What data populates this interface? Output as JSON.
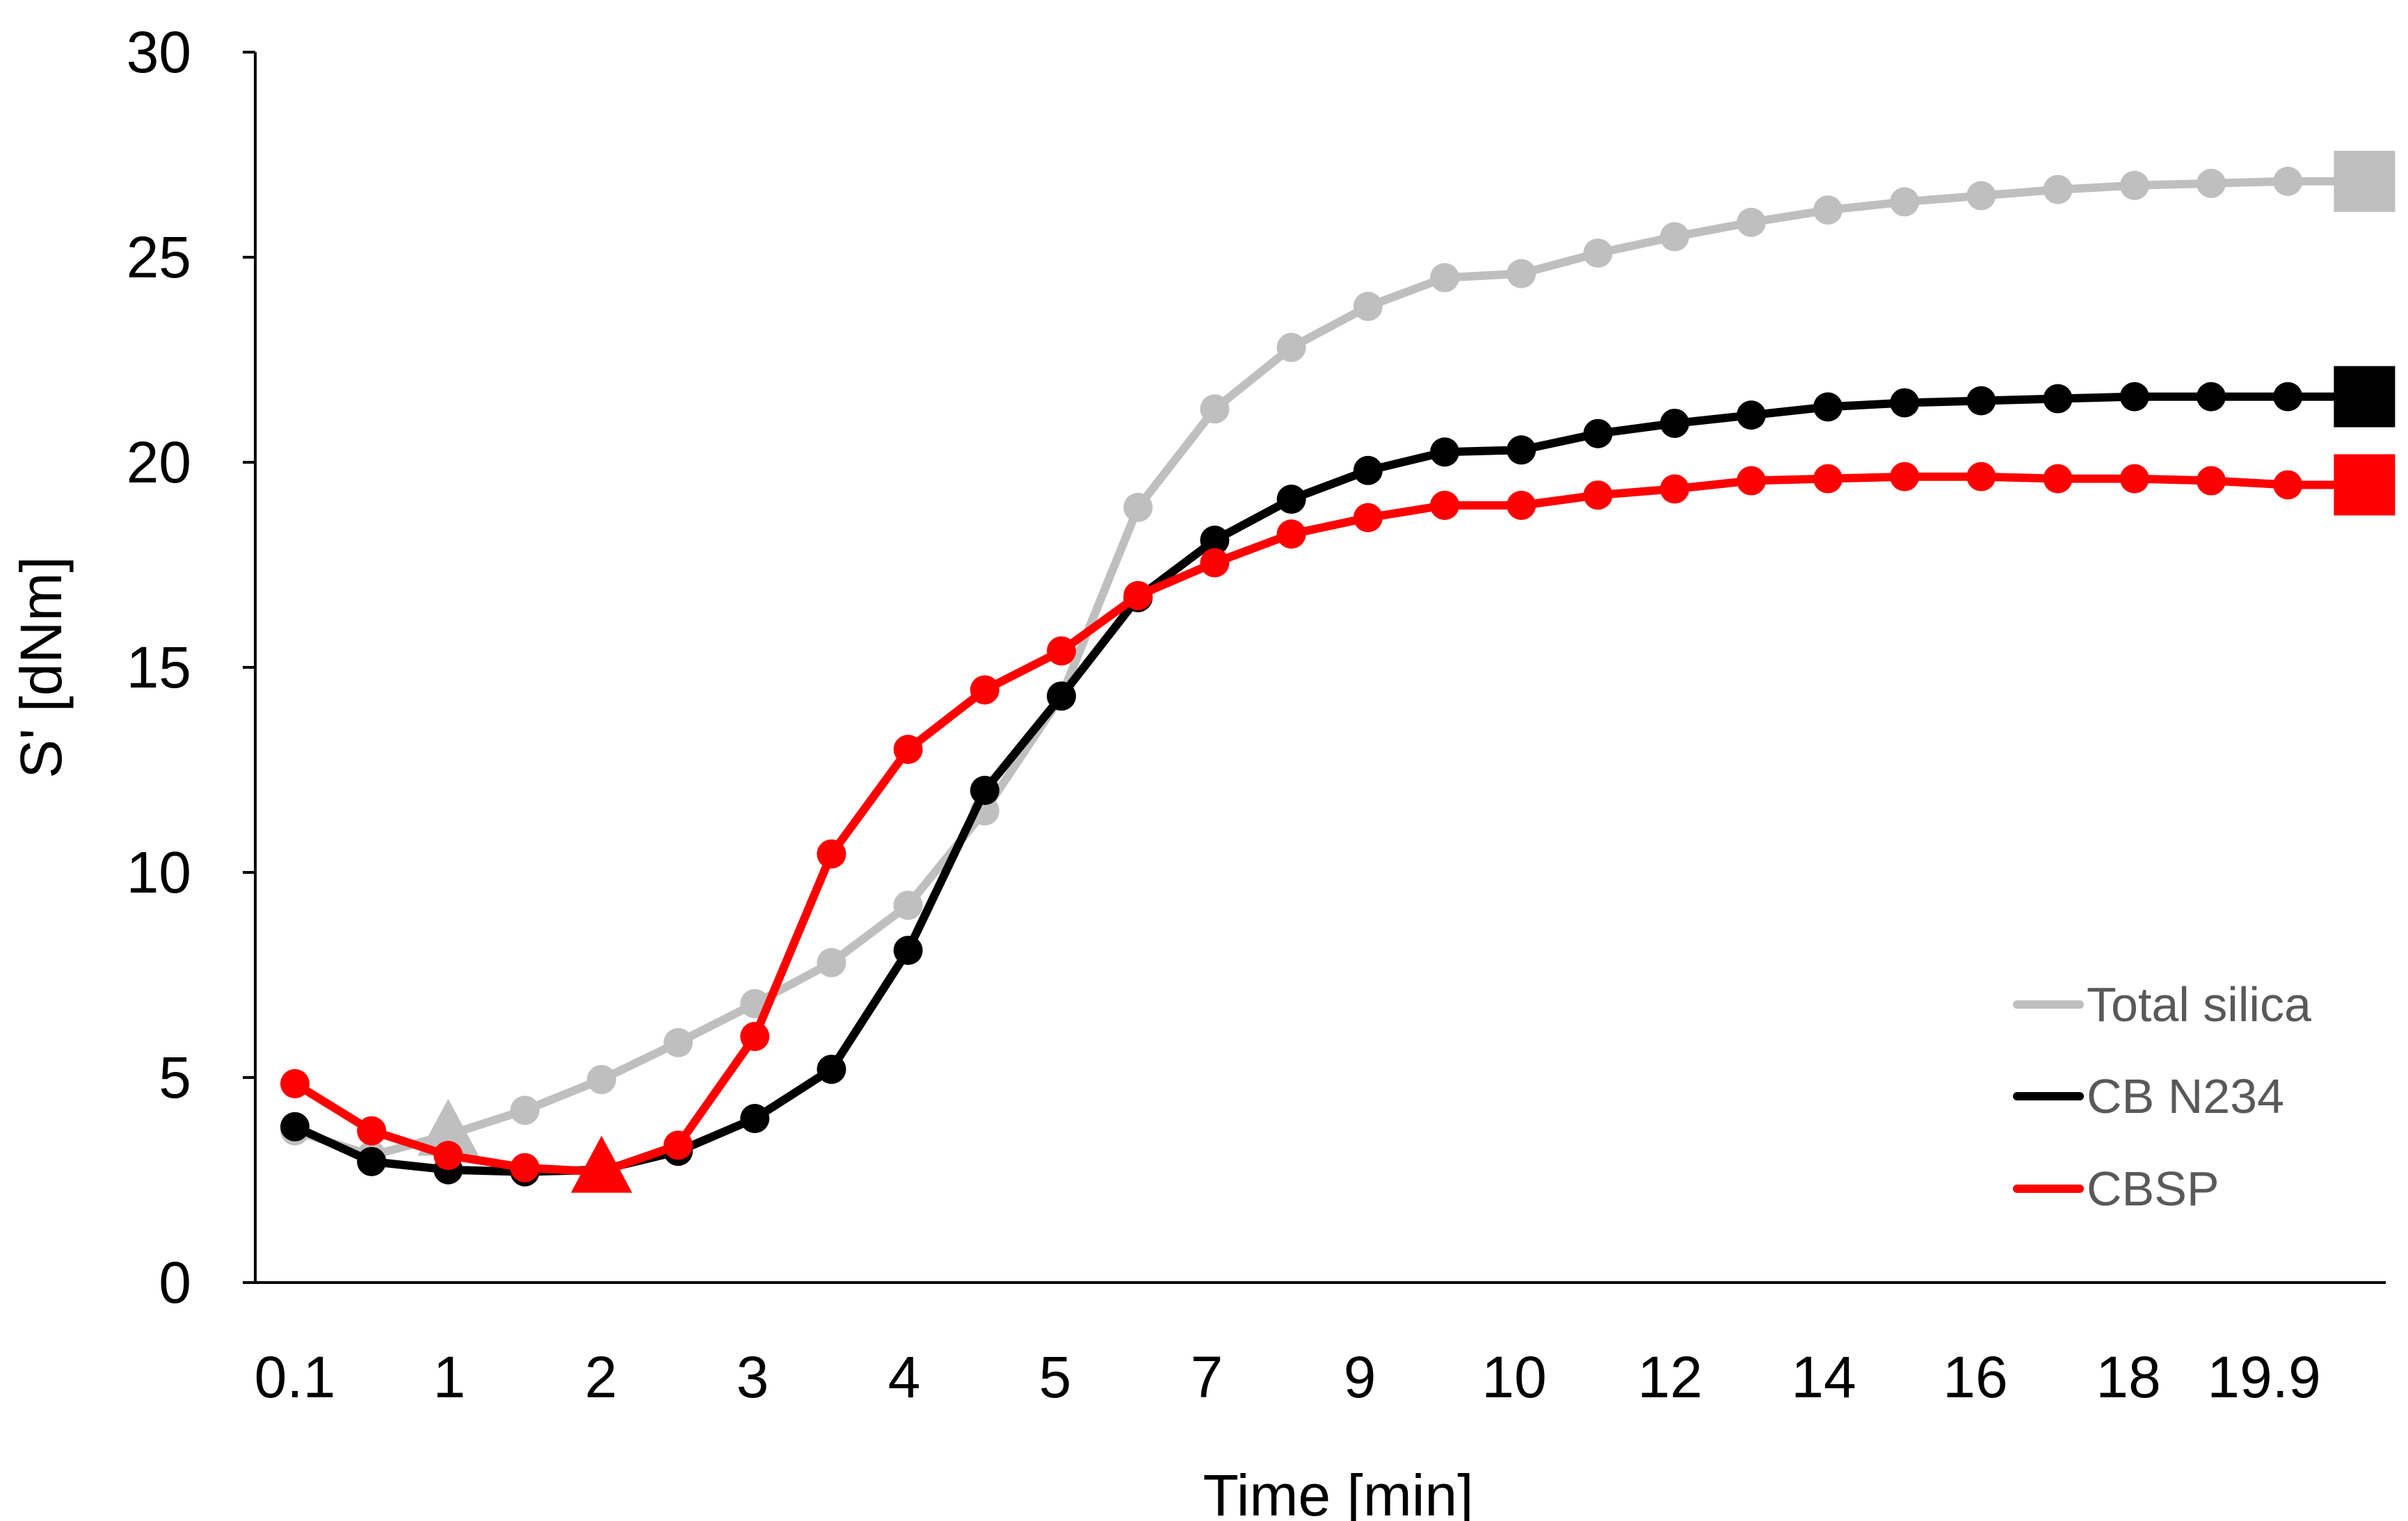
{
  "chart_data": {
    "type": "line",
    "title": "",
    "xlabel": "Time [min]",
    "ylabel": "S' [dNm]",
    "ylim": [
      0,
      30
    ],
    "yticks": [
      0,
      5,
      10,
      15,
      20,
      25,
      30
    ],
    "x_tick_labels": [
      "0.1",
      "1",
      "2",
      "3",
      "4",
      "5",
      "7",
      "9",
      "10",
      "12",
      "14",
      "16",
      "18",
      "19.9"
    ],
    "point_count": 28,
    "grid": false,
    "legend_position": "bottom-right",
    "series": [
      {
        "name": "Total silica",
        "color": "#bfbfbf",
        "values": [
          3.7,
          3.1,
          3.6,
          4.2,
          4.95,
          5.85,
          6.8,
          7.8,
          9.2,
          11.5,
          14.3,
          18.9,
          21.3,
          22.8,
          23.8,
          24.5,
          24.6,
          25.1,
          25.5,
          25.85,
          26.15,
          26.35,
          26.5,
          26.65,
          26.75,
          26.8,
          26.85,
          26.85
        ],
        "markers": [
          "circle",
          "circle",
          "triangle",
          "circle",
          "circle",
          "circle",
          "circle",
          "circle",
          "circle",
          "circle",
          "circle",
          "circle",
          "circle",
          "circle",
          "circle",
          "circle",
          "circle",
          "circle",
          "circle",
          "circle",
          "circle",
          "circle",
          "circle",
          "circle",
          "circle",
          "circle",
          "circle",
          "square"
        ]
      },
      {
        "name": "CB N234",
        "color": "#000000",
        "values": [
          3.8,
          2.95,
          2.75,
          2.7,
          2.75,
          3.2,
          4.0,
          5.2,
          8.1,
          12.0,
          14.3,
          16.7,
          18.1,
          19.1,
          19.8,
          20.25,
          20.3,
          20.7,
          20.95,
          21.15,
          21.35,
          21.45,
          21.5,
          21.55,
          21.6,
          21.6,
          21.6,
          21.6
        ],
        "markers": [
          "circle",
          "circle",
          "circle",
          "circle",
          "circle",
          "circle",
          "circle",
          "circle",
          "circle",
          "circle",
          "circle",
          "circle",
          "circle",
          "circle",
          "circle",
          "circle",
          "circle",
          "circle",
          "circle",
          "circle",
          "circle",
          "circle",
          "circle",
          "circle",
          "circle",
          "circle",
          "circle",
          "square"
        ]
      },
      {
        "name": "CBSP",
        "color": "#ff0000",
        "values": [
          4.85,
          3.7,
          3.1,
          2.8,
          2.7,
          3.35,
          6.0,
          10.45,
          13.0,
          14.45,
          15.4,
          16.75,
          17.55,
          18.25,
          18.65,
          18.95,
          18.95,
          19.2,
          19.35,
          19.55,
          19.6,
          19.65,
          19.65,
          19.6,
          19.6,
          19.55,
          19.45,
          19.45
        ],
        "markers": [
          "circle",
          "circle",
          "circle",
          "circle",
          "triangle",
          "circle",
          "circle",
          "circle",
          "circle",
          "circle",
          "circle",
          "circle",
          "circle",
          "circle",
          "circle",
          "circle",
          "circle",
          "circle",
          "circle",
          "circle",
          "circle",
          "circle",
          "circle",
          "circle",
          "circle",
          "circle",
          "circle",
          "square"
        ]
      }
    ]
  }
}
